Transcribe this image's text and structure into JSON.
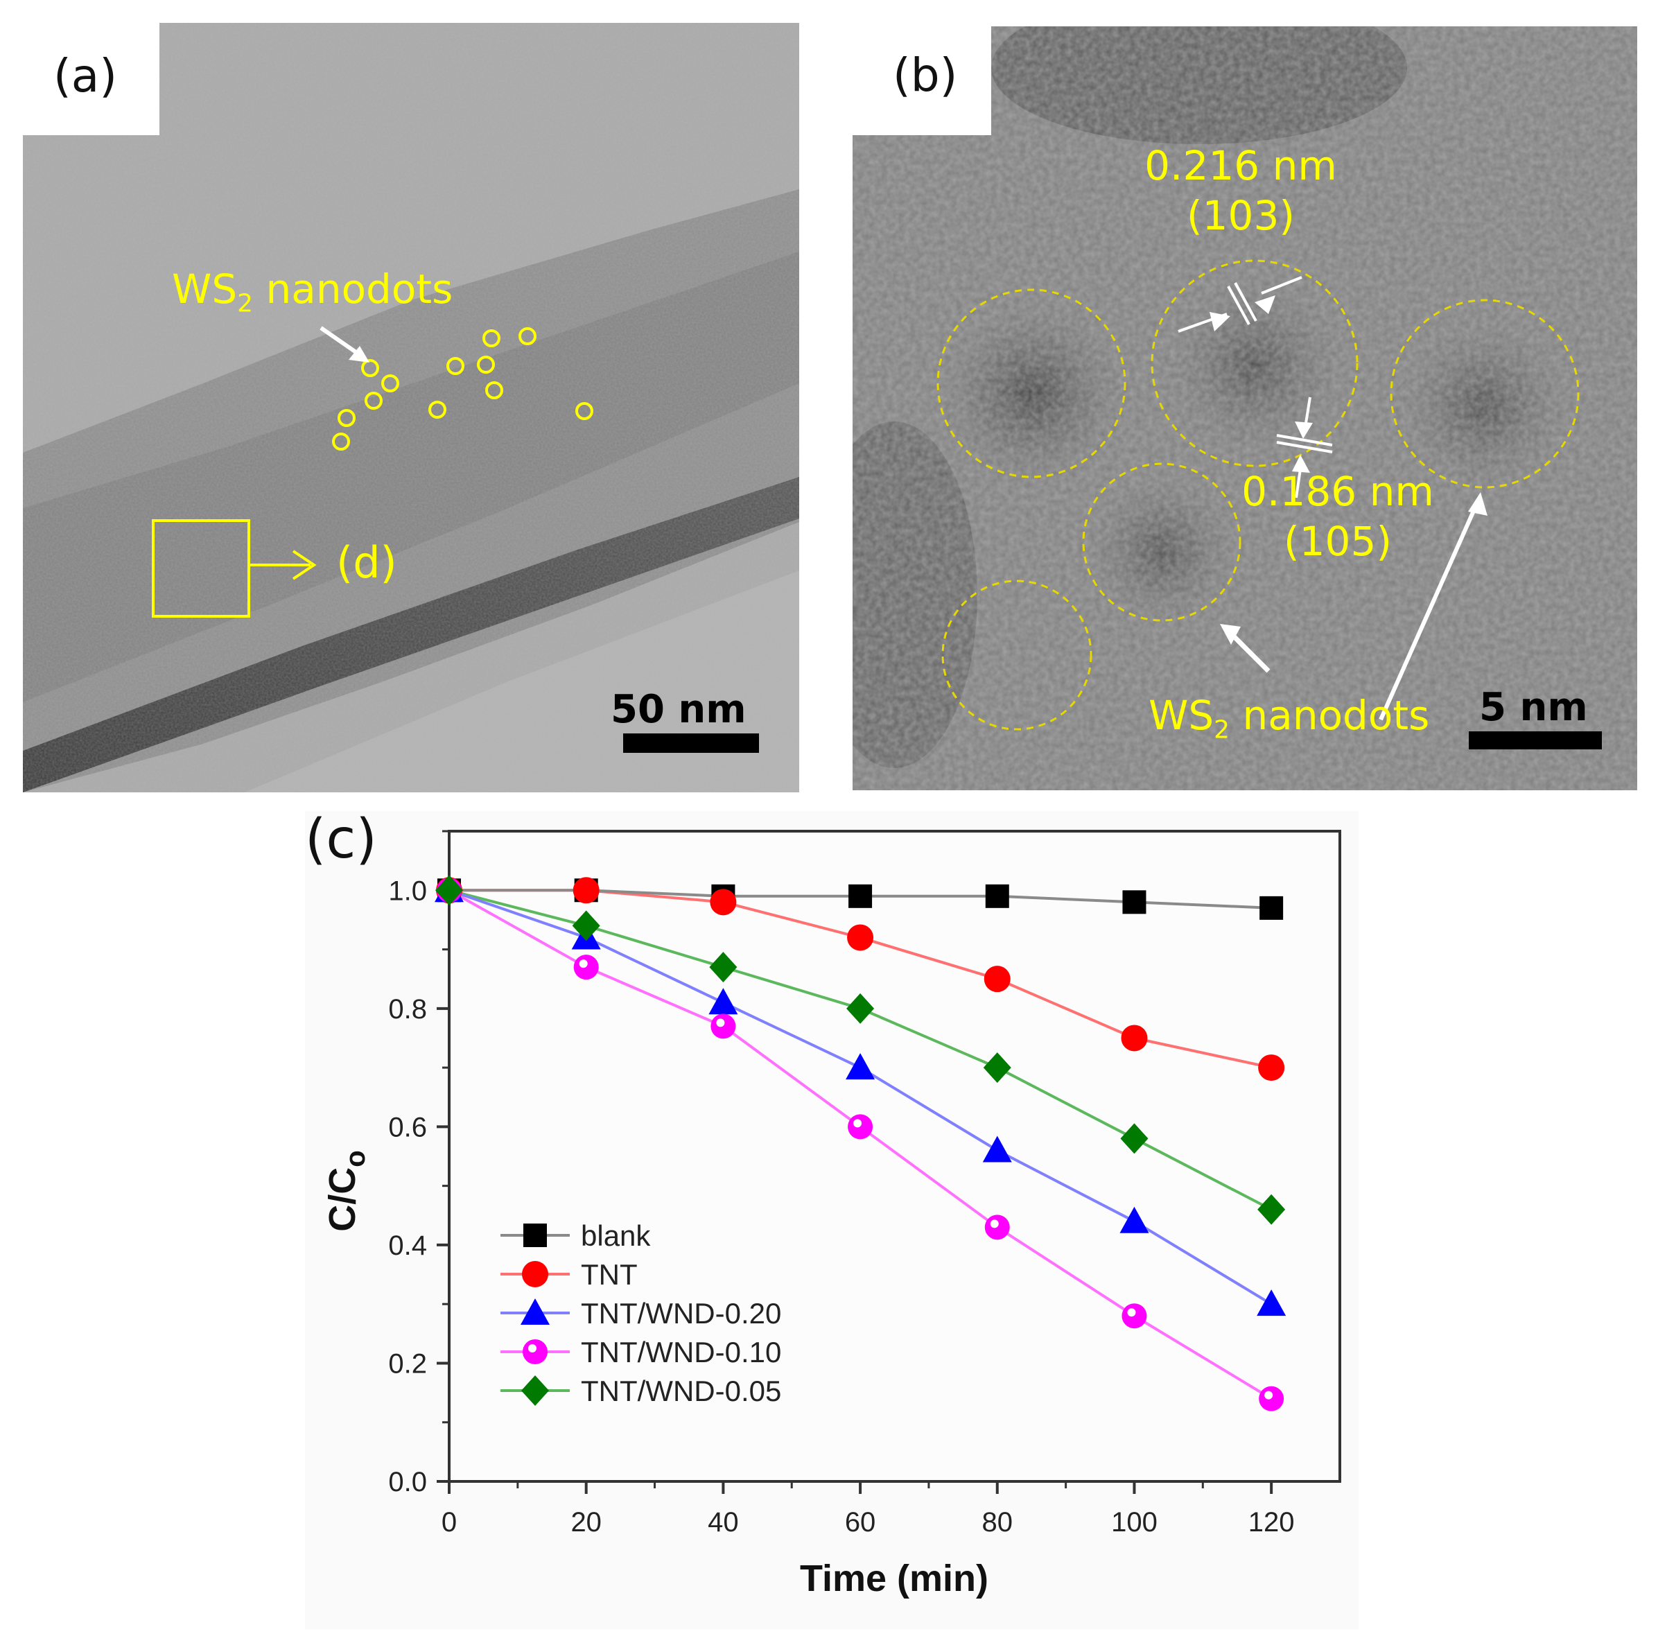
{
  "figure": {
    "panels": [
      {
        "id": "a",
        "label": "(a)",
        "annotation": "WS",
        "annotation_sub": "2",
        "annotation_rest": " nanodots",
        "inset_label": "(d)",
        "scale_bar": "50 nm"
      },
      {
        "id": "b",
        "label": "(b)",
        "spacing_1": "0.216 nm",
        "plane_1": "(103)",
        "spacing_2": "0.186 nm",
        "plane_2": "(105)",
        "annotation": "WS",
        "annotation_sub": "2",
        "annotation_rest": " nanodots",
        "scale_bar": "5 nm"
      },
      {
        "id": "c",
        "label": "(c)"
      }
    ],
    "colors": {
      "annotation_yellow": "#ffff00",
      "blank": "#000000",
      "tnt": "#ff0000",
      "wnd020": "#0000ff",
      "wnd010": "#ff00ff",
      "wnd005": "#007a00"
    }
  },
  "chart_data": {
    "type": "line",
    "title": "",
    "xlabel": "Time (min)",
    "ylabel": "C/Cₒ",
    "xlim": [
      0,
      130
    ],
    "ylim": [
      0,
      1.1
    ],
    "x": [
      0,
      20,
      40,
      60,
      80,
      100,
      120
    ],
    "xticks": [
      "0",
      "20",
      "40",
      "60",
      "80",
      "100",
      "120"
    ],
    "yticks": [
      "0.0",
      "0.2",
      "0.4",
      "0.6",
      "0.8",
      "1.0"
    ],
    "grid": false,
    "legend_position": "lower-left",
    "series": [
      {
        "name": "blank",
        "marker": "square",
        "color": "#000000",
        "line_color": "#8a8a8a",
        "values": [
          1.0,
          1.0,
          0.99,
          0.99,
          0.99,
          0.98,
          0.97
        ]
      },
      {
        "name": "TNT",
        "marker": "circle",
        "color": "#ff0000",
        "line_color": "#ff7070",
        "values": [
          1.0,
          1.0,
          0.98,
          0.92,
          0.85,
          0.75,
          0.7
        ]
      },
      {
        "name": "TNT/WND-0.20",
        "marker": "triangle",
        "color": "#0000ff",
        "line_color": "#8080ff",
        "values": [
          1.0,
          0.92,
          0.81,
          0.7,
          0.56,
          0.44,
          0.3
        ]
      },
      {
        "name": "TNT/WND-0.10",
        "marker": "hollow-circle",
        "color": "#ff00ff",
        "line_color": "#ff70ff",
        "values": [
          1.0,
          0.87,
          0.77,
          0.6,
          0.43,
          0.28,
          0.14
        ]
      },
      {
        "name": "TNT/WND-0.05",
        "marker": "diamond",
        "color": "#007a00",
        "line_color": "#5cb85c",
        "values": [
          1.0,
          0.94,
          0.87,
          0.8,
          0.7,
          0.58,
          0.46
        ]
      }
    ]
  }
}
